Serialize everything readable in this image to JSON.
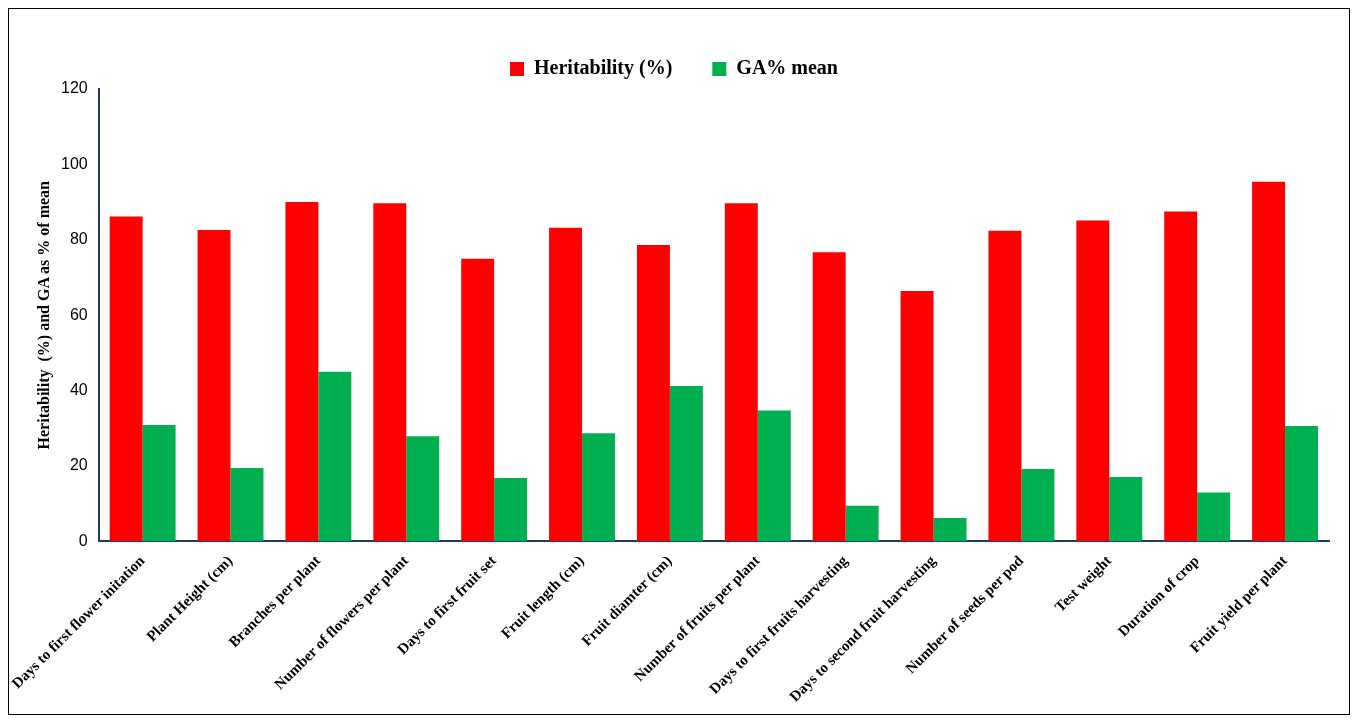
{
  "chart_data": {
    "type": "bar",
    "ylabel": "Heritability  (%) and GA as % of mean",
    "categories": [
      "Days to first flower initation",
      "Plant Height (cm)",
      "Branches per plant",
      "Number of flowers per plant",
      "Days to first fruit set",
      "Fruit length (cm)",
      "Fruit diamter (cm)",
      "Number of fruits per plant",
      "Days to first fruits harvesting",
      "Days to second fruit harvesting",
      "Number of seeds per pod",
      "Test weight",
      "Duration of crop",
      "Fruit yield per plant"
    ],
    "series": [
      {
        "name": "Heritability (%)",
        "color": "#ff0000",
        "values": [
          86.2,
          82.6,
          90,
          89.7,
          75,
          83.2,
          78.6,
          89.7,
          76.7,
          66.4,
          82.4,
          85.1,
          87.5,
          95.4
        ]
      },
      {
        "name": "GA% mean",
        "color": "#00b050",
        "values": [
          30.9,
          19.5,
          45,
          27.9,
          16.8,
          28.7,
          41.2,
          34.7,
          9.5,
          6.2,
          19.2,
          17.1,
          13,
          30.6
        ]
      }
    ],
    "ylim": [
      0,
      120
    ],
    "yticks": [
      0,
      20,
      40,
      60,
      80,
      100,
      120
    ],
    "grid": false,
    "legend": "top"
  }
}
